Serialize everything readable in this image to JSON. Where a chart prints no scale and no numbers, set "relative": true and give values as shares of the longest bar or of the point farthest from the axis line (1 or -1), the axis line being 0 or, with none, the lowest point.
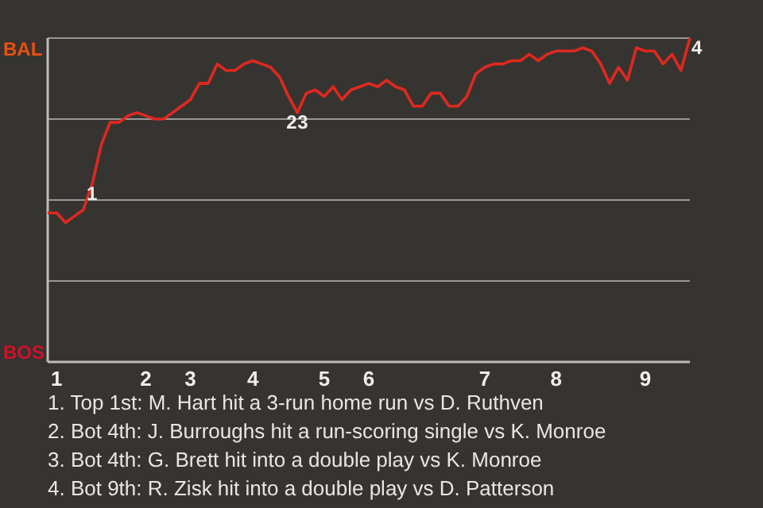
{
  "chart_data": {
    "type": "line",
    "relative": true,
    "categories": [
      null,
      "1",
      null,
      null,
      null,
      null,
      null,
      null,
      null,
      null,
      null,
      "2",
      null,
      null,
      null,
      null,
      "3",
      null,
      null,
      null,
      null,
      null,
      null,
      "4",
      null,
      null,
      null,
      null,
      null,
      null,
      null,
      "5",
      null,
      null,
      null,
      null,
      "6",
      null,
      null,
      null,
      null,
      null,
      null,
      null,
      null,
      null,
      null,
      null,
      null,
      "7",
      null,
      null,
      null,
      null,
      null,
      null,
      null,
      "8",
      null,
      null,
      null,
      null,
      null,
      null,
      null,
      null,
      null,
      "9",
      null,
      null,
      null,
      null,
      null
    ],
    "series": [
      {
        "color": "#e0281e",
        "values": [
          0.46,
          0.46,
          0.43,
          0.45,
          0.47,
          0.55,
          0.67,
          0.74,
          0.74,
          0.76,
          0.77,
          0.76,
          0.75,
          0.75,
          0.77,
          0.79,
          0.81,
          0.86,
          0.86,
          0.92,
          0.9,
          0.9,
          0.92,
          0.93,
          0.92,
          0.91,
          0.88,
          0.82,
          0.77,
          0.83,
          0.84,
          0.82,
          0.85,
          0.81,
          0.84,
          0.85,
          0.86,
          0.85,
          0.87,
          0.85,
          0.84,
          0.79,
          0.79,
          0.83,
          0.83,
          0.79,
          0.79,
          0.82,
          0.89,
          0.91,
          0.92,
          0.92,
          0.93,
          0.93,
          0.95,
          0.93,
          0.95,
          0.96,
          0.96,
          0.96,
          0.97,
          0.96,
          0.92,
          0.86,
          0.91,
          0.87,
          0.97,
          0.96,
          0.96,
          0.92,
          0.95,
          0.9,
          1.0
        ]
      }
    ],
    "grid": "y",
    "marker": "none",
    "line_style": "solid",
    "annotations": [
      "BAL",
      "BOS",
      {
        "text": "1",
        "y": 0.55
      },
      {
        "text": "2",
        "y": 0.77
      },
      {
        "text": "3",
        "y": 0.77
      },
      {
        "text": "4",
        "y": 1.0
      },
      "1. Top 1st: M. Hart hit a 3-run home run vs D. Ruthven",
      "2. Bot 4th: J. Burroughs hit a run-scoring single vs K. Monroe",
      "3. Bot 4th: G. Brett hit into a double play vs K. Monroe",
      "4. Bot 9th: R. Zisk hit into a double play vs D. Patterson"
    ]
  }
}
